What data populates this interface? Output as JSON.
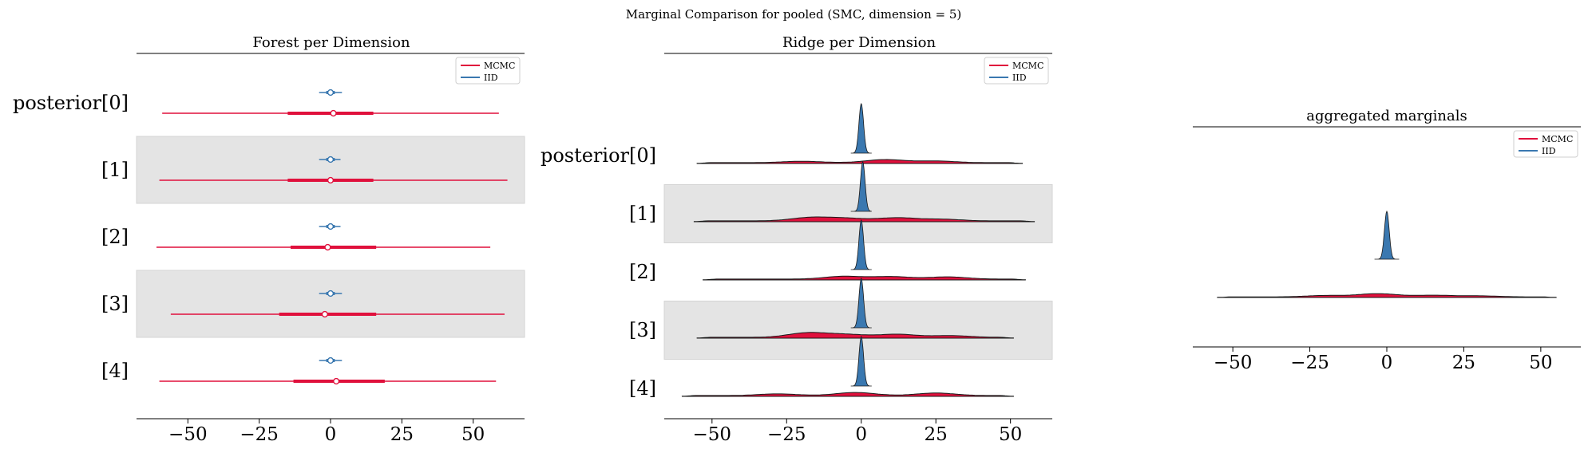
{
  "suptitle": "Marginal Comparison for pooled (SMC, dimension = 5)",
  "colors": {
    "mcmc": "#e0103c",
    "iid": "#3a78b0",
    "band": "#e4e4e4",
    "outline": "#1a1a1a"
  },
  "chart_data": [
    {
      "type": "forest",
      "title": "Forest per Dimension",
      "legend": {
        "position": "top-right",
        "entries": [
          "MCMC",
          "IID"
        ]
      },
      "row_labels": [
        "posterior[0]",
        "[1]",
        "[2]",
        "[3]",
        "[4]"
      ],
      "xlim": [
        -68,
        68
      ],
      "xticks": [
        -50,
        -25,
        0,
        25,
        50
      ],
      "xtick_labels": [
        "−50",
        "−25",
        "0",
        "25",
        "50"
      ],
      "series": [
        {
          "name": "MCMC",
          "color": "#e0103c",
          "rows": [
            {
              "low": -59,
              "q25": -15,
              "median": 1,
              "q75": 15,
              "high": 59
            },
            {
              "low": -60,
              "q25": -15,
              "median": 0,
              "q75": 15,
              "high": 62
            },
            {
              "low": -61,
              "q25": -14,
              "median": -1,
              "q75": 16,
              "high": 56
            },
            {
              "low": -56,
              "q25": -18,
              "median": -2,
              "q75": 16,
              "high": 61
            },
            {
              "low": -60,
              "q25": -13,
              "median": 2,
              "q75": 19,
              "high": 58
            }
          ]
        },
        {
          "name": "IID",
          "color": "#3a78b0",
          "rows": [
            {
              "low": -4,
              "q25": -1.5,
              "median": 0,
              "q75": 1.5,
              "high": 4
            },
            {
              "low": -4,
              "q25": -1.5,
              "median": 0,
              "q75": 1.5,
              "high": 3.5
            },
            {
              "low": -4,
              "q25": -1.5,
              "median": 0,
              "q75": 1.5,
              "high": 3.5
            },
            {
              "low": -4,
              "q25": -1.5,
              "median": 0,
              "q75": 1.5,
              "high": 4
            },
            {
              "low": -4,
              "q25": -1.5,
              "median": 0,
              "q75": 1.5,
              "high": 4
            }
          ]
        }
      ]
    },
    {
      "type": "ridge",
      "title": "Ridge per Dimension",
      "legend": {
        "position": "top-right",
        "entries": [
          "MCMC",
          "IID"
        ]
      },
      "row_labels": [
        "posterior[0]",
        "[1]",
        "[2]",
        "[3]",
        "[4]"
      ],
      "xlim": [
        -66,
        64
      ],
      "xticks": [
        -50,
        -25,
        0,
        25,
        50
      ],
      "xtick_labels": [
        "−50",
        "−25",
        "0",
        "25",
        "50"
      ],
      "series": [
        {
          "name": "MCMC",
          "color": "#e0103c",
          "rows": [
            {
              "low": -55,
              "high": 54,
              "peaks": [
                [
                  -20,
                  0.25
                ],
                [
                  8,
                  0.55
                ],
                [
                  25,
                  0.3
                ]
              ]
            },
            {
              "low": -56,
              "high": 58,
              "peaks": [
                [
                  -17,
                  0.6
                ],
                [
                  -5,
                  0.45
                ],
                [
                  12,
                  0.55
                ],
                [
                  27,
                  0.3
                ]
              ]
            },
            {
              "low": -53,
              "high": 55,
              "peaks": [
                [
                  -6,
                  0.5
                ],
                [
                  10,
                  0.45
                ],
                [
                  29,
                  0.4
                ]
              ]
            },
            {
              "low": -55,
              "high": 51,
              "peaks": [
                [
                  -18,
                  0.8
                ],
                [
                  -5,
                  0.5
                ],
                [
                  12,
                  0.55
                ],
                [
                  30,
                  0.3
                ]
              ]
            },
            {
              "low": -60,
              "high": 51,
              "peaks": [
                [
                  -28,
                  0.3
                ],
                [
                  -2,
                  0.55
                ],
                [
                  25,
                  0.45
                ]
              ]
            }
          ]
        },
        {
          "name": "IID",
          "color": "#3a78b0",
          "rows": [
            {
              "low": -3.5,
              "high": 3.5,
              "mode": 0
            },
            {
              "low": -3.5,
              "high": 3.5,
              "mode": 0.5
            },
            {
              "low": -3.5,
              "high": 3.5,
              "mode": 0
            },
            {
              "low": -3.5,
              "high": 3.5,
              "mode": 0
            },
            {
              "low": -3.5,
              "high": 3.5,
              "mode": 0
            }
          ]
        }
      ]
    },
    {
      "type": "ridge",
      "title": "aggregated marginals",
      "legend": {
        "position": "top-right",
        "entries": [
          "MCMC",
          "IID"
        ]
      },
      "xlim": [
        -63,
        63
      ],
      "xticks": [
        -50,
        -25,
        0,
        25,
        50
      ],
      "xtick_labels": [
        "−50",
        "−25",
        "0",
        "25",
        "50"
      ],
      "series": [
        {
          "name": "MCMC",
          "color": "#e0103c",
          "rows": [
            {
              "low": -55,
              "high": 55,
              "peaks": [
                [
                  -20,
                  0.35
                ],
                [
                  -3,
                  0.8
                ],
                [
                  15,
                  0.4
                ],
                [
                  30,
                  0.25
                ]
              ]
            }
          ]
        },
        {
          "name": "IID",
          "color": "#3a78b0",
          "rows": [
            {
              "low": -4,
              "high": 4,
              "mode": 0
            }
          ]
        }
      ]
    }
  ]
}
